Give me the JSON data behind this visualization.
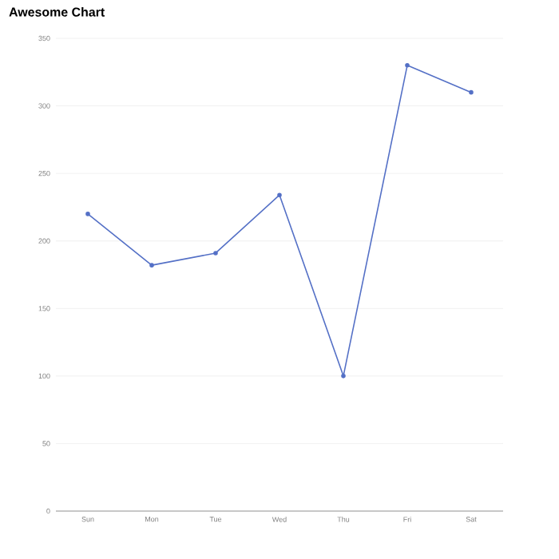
{
  "chart_data": {
    "type": "line",
    "title": "Awesome Chart",
    "categories": [
      "Sun",
      "Mon",
      "Tue",
      "Wed",
      "Thu",
      "Fri",
      "Sat"
    ],
    "series": [
      {
        "color": "#5470c6",
        "values": [
          220,
          182,
          191,
          234,
          100,
          330,
          310
        ]
      }
    ],
    "ylim": [
      0,
      350
    ],
    "yticks": [
      0,
      50,
      100,
      150,
      200,
      250,
      300,
      350
    ],
    "grid": "y",
    "marker": "circle"
  }
}
